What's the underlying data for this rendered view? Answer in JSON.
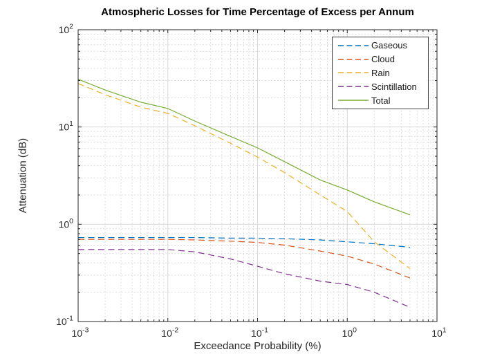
{
  "title": "Atmospheric Losses for Time Percentage of Excess per Annum",
  "xlabel": "Exceedance Probability (%)",
  "ylabel": "Attenuation (dB)",
  "axis_color": "#262626",
  "major_grid_color": "#d6d6d6",
  "minor_grid_color": "#dcdcdc",
  "chart_data": {
    "type": "line",
    "title": "Atmospheric Losses for Time Percentage of Excess per Annum",
    "xlabel": "Exceedance Probability (%)",
    "ylabel": "Attenuation (dB)",
    "x_scale": "log",
    "y_scale": "log",
    "xlim": [
      0.001,
      10
    ],
    "ylim": [
      0.1,
      100
    ],
    "x_tick_exponents": [
      -3,
      -2,
      -1,
      0,
      1
    ],
    "y_tick_exponents": [
      -1,
      0,
      1,
      2
    ],
    "grid": "major+minor",
    "legend_position": "northeast",
    "x": [
      0.001,
      0.002,
      0.005,
      0.01,
      0.02,
      0.05,
      0.1,
      0.2,
      0.5,
      1,
      2,
      5
    ],
    "series": [
      {
        "name": "Gaseous",
        "color": "#0072BD",
        "line_style": "dashed",
        "values": [
          0.73,
          0.73,
          0.73,
          0.73,
          0.73,
          0.72,
          0.72,
          0.71,
          0.69,
          0.66,
          0.63,
          0.58
        ]
      },
      {
        "name": "Cloud",
        "color": "#D95319",
        "line_style": "dashed",
        "values": [
          0.7,
          0.7,
          0.7,
          0.7,
          0.69,
          0.67,
          0.65,
          0.61,
          0.53,
          0.47,
          0.39,
          0.28
        ]
      },
      {
        "name": "Rain",
        "color": "#EDB120",
        "line_style": "dashed",
        "values": [
          28,
          21.5,
          16,
          13.8,
          10.3,
          6.8,
          4.9,
          3.4,
          2.0,
          1.35,
          0.66,
          0.35
        ]
      },
      {
        "name": "Scintillation",
        "color": "#7E2F8E",
        "line_style": "dashed",
        "values": [
          0.55,
          0.55,
          0.55,
          0.55,
          0.52,
          0.44,
          0.37,
          0.31,
          0.26,
          0.24,
          0.2,
          0.14
        ]
      },
      {
        "name": "Total",
        "color": "#77AC30",
        "line_style": "solid",
        "values": [
          31,
          24,
          18,
          15.5,
          11.5,
          8.0,
          6.1,
          4.4,
          2.85,
          2.25,
          1.7,
          1.25
        ]
      }
    ]
  }
}
